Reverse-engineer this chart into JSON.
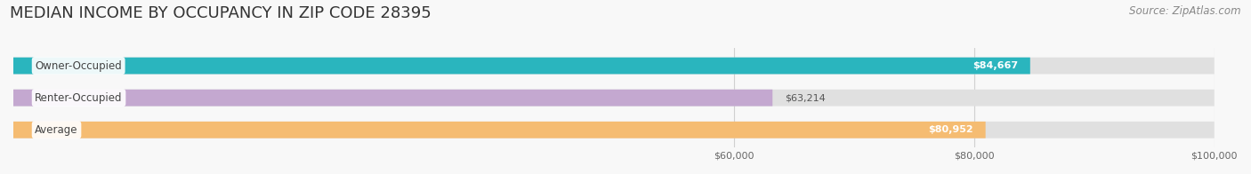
{
  "title": "MEDIAN INCOME BY OCCUPANCY IN ZIP CODE 28395",
  "source": "Source: ZipAtlas.com",
  "categories": [
    "Owner-Occupied",
    "Renter-Occupied",
    "Average"
  ],
  "values": [
    84667,
    63214,
    80952
  ],
  "labels": [
    "$84,667",
    "$63,214",
    "$80,952"
  ],
  "bar_colors": [
    "#2AB5BE",
    "#C4A8D0",
    "#F5BC72"
  ],
  "bar_background": "#E0E0E0",
  "bar_border_color": "#CCCCCC",
  "xlim_min": 0,
  "xlim_max": 100000,
  "xstart": 0,
  "xticks": [
    60000,
    80000,
    100000
  ],
  "xtick_labels": [
    "$60,000",
    "$80,000",
    "$100,000"
  ],
  "title_fontsize": 13,
  "source_fontsize": 8.5,
  "label_fontsize": 8,
  "cat_fontsize": 8.5,
  "figsize": [
    14.06,
    1.96
  ],
  "dpi": 100,
  "bg_color": "#F8F8F8",
  "grid_color": "#D0D0D0"
}
